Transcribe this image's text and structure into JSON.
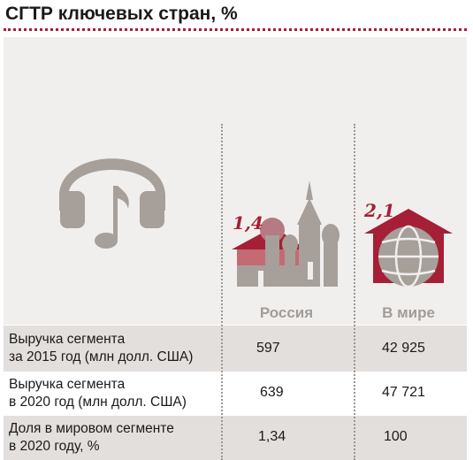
{
  "title": "СГТР ключевых стран, %",
  "colors": {
    "accent": "#a51f36",
    "icon": "#a79f9a",
    "panel": "#f1efed",
    "row_shade": "#e3dfdc"
  },
  "icons": [
    "headphones-music-icon",
    "kremlin-house-icon",
    "globe-house-icon"
  ],
  "chart_data": {
    "type": "table",
    "title": "СГТР ключевых стран, %",
    "columns": [
      "Россия",
      "В мире"
    ],
    "cagr_labels": [
      "1,4",
      "2,1"
    ],
    "cagr_values": [
      1.4,
      2.1
    ],
    "rows": [
      {
        "label_lines": [
          "Выручка сегмента",
          "за 2015 год (млн долл. США)"
        ],
        "values": [
          "597",
          "42 925"
        ]
      },
      {
        "label_lines": [
          "Выручка сегмента",
          "в 2020 год (млн долл. США)"
        ],
        "values": [
          "639",
          "47 721"
        ]
      },
      {
        "label_lines": [
          "Доля в мировом сегменте",
          "в 2020 году, %"
        ],
        "values": [
          "1,34",
          "100"
        ]
      }
    ]
  }
}
